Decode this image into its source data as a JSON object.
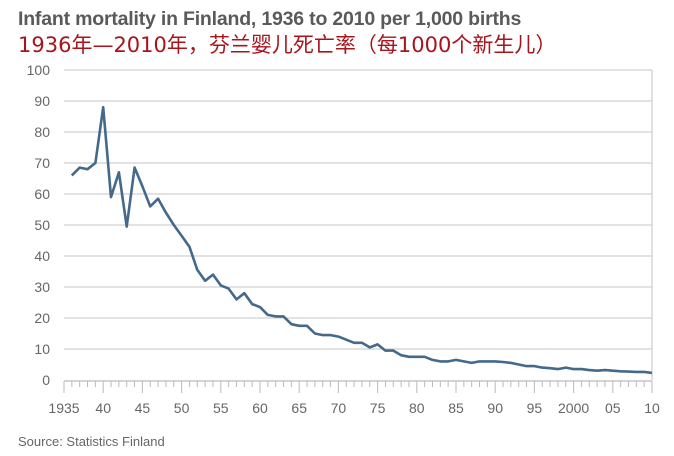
{
  "title": "Infant mortality in Finland, 1936 to 2010 per 1,000 births",
  "subtitle": "1936年—2010年，芬兰婴儿死亡率（每1000个新生儿）",
  "source": "Source: Statistics Finland",
  "colors": {
    "line": "#44698a",
    "grid": "#d0d0d0",
    "title": "#5a5a5a",
    "subtitle": "#a8141c"
  },
  "chart_data": {
    "type": "line",
    "title": "Infant mortality in Finland, 1936 to 2010 per 1,000 births",
    "xlabel": "",
    "ylabel": "",
    "xlim": [
      1935,
      2010
    ],
    "ylim": [
      0,
      100
    ],
    "grid": true,
    "x_ticks": [
      1935,
      1940,
      1945,
      1950,
      1955,
      1960,
      1965,
      1970,
      1975,
      1980,
      1985,
      1990,
      1995,
      2000,
      2005,
      2010
    ],
    "x_tick_labels": [
      "1935",
      "40",
      "45",
      "50",
      "55",
      "60",
      "65",
      "70",
      "75",
      "80",
      "85",
      "90",
      "95",
      "2000",
      "05",
      "10"
    ],
    "y_ticks": [
      0,
      10,
      20,
      30,
      40,
      50,
      60,
      70,
      80,
      90,
      100
    ],
    "y_tick_labels": [
      "0",
      "10",
      "20",
      "30",
      "40",
      "50",
      "60",
      "70",
      "80",
      "90",
      "100"
    ],
    "x": [
      1936,
      1937,
      1938,
      1939,
      1940,
      1941,
      1942,
      1943,
      1944,
      1945,
      1946,
      1947,
      1948,
      1949,
      1950,
      1951,
      1952,
      1953,
      1954,
      1955,
      1956,
      1957,
      1958,
      1959,
      1960,
      1961,
      1962,
      1963,
      1964,
      1965,
      1966,
      1967,
      1968,
      1969,
      1970,
      1971,
      1972,
      1973,
      1974,
      1975,
      1976,
      1977,
      1978,
      1979,
      1980,
      1981,
      1982,
      1983,
      1984,
      1985,
      1986,
      1987,
      1988,
      1989,
      1990,
      1991,
      1992,
      1993,
      1994,
      1995,
      1996,
      1997,
      1998,
      1999,
      2000,
      2001,
      2002,
      2003,
      2004,
      2005,
      2006,
      2007,
      2008,
      2009,
      2010
    ],
    "values": [
      66,
      68.5,
      68,
      70,
      88,
      59,
      67,
      49.5,
      68.5,
      62.5,
      56,
      58.5,
      54,
      50,
      46.5,
      43,
      35.5,
      32,
      34,
      30.5,
      29.5,
      26,
      28,
      24.5,
      23.5,
      21,
      20.5,
      20.5,
      18,
      17.5,
      17.5,
      15,
      14.5,
      14.5,
      14,
      13,
      12,
      12,
      10.5,
      11.5,
      9.5,
      9.5,
      8,
      7.5,
      7.5,
      7.5,
      6.5,
      6,
      6,
      6.5,
      6,
      5.5,
      6,
      6,
      6,
      5.8,
      5.5,
      5,
      4.5,
      4.5,
      4,
      3.8,
      3.5,
      4,
      3.5,
      3.5,
      3.2,
      3,
      3.2,
      3,
      2.8,
      2.7,
      2.6,
      2.6,
      2.3
    ]
  }
}
